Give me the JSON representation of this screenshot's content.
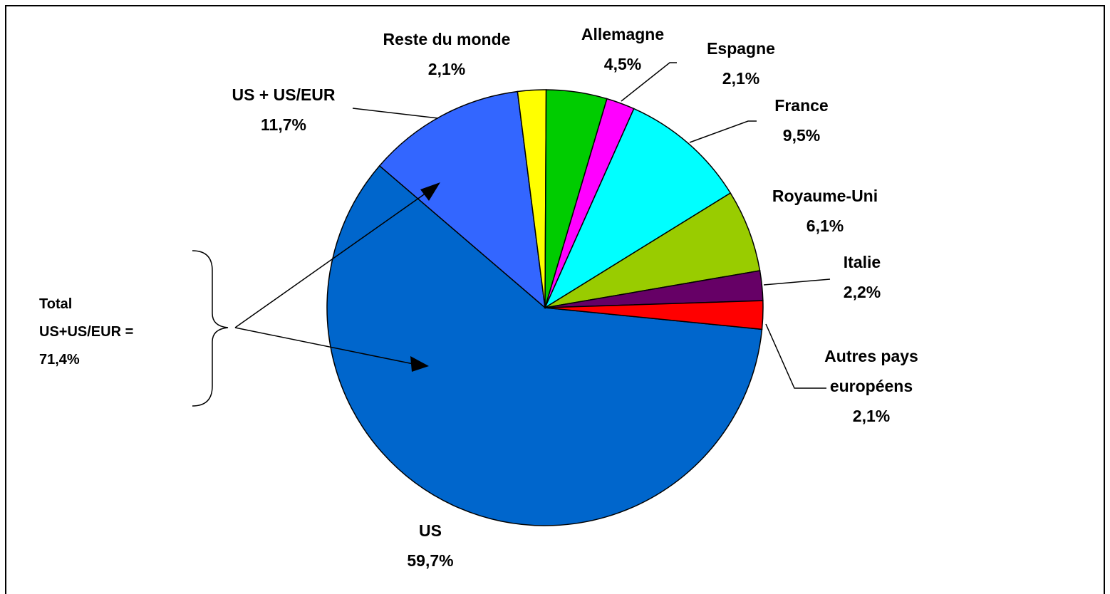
{
  "chart_data": {
    "type": "pie",
    "categories": [
      "US",
      "US + US/EUR",
      "Reste du monde",
      "Allemagne",
      "Espagne",
      "France",
      "Royaume-Uni",
      "Italie",
      "Autres pays\neuropéens"
    ],
    "values": [
      59.7,
      11.7,
      2.1,
      4.5,
      2.1,
      9.5,
      6.1,
      2.2,
      2.1
    ],
    "value_labels": [
      "59,7%",
      "11,7%",
      "2,1%",
      "4,5%",
      "2,1%",
      "9,5%",
      "6,1%",
      "2,2%",
      "2,1%"
    ],
    "colors": [
      "#0066cc",
      "#3366ff",
      "#ffff00",
      "#00cc00",
      "#ff00ff",
      "#00ffff",
      "#99cc00",
      "#660066",
      "#ff0000"
    ],
    "annotation": "Total\nUS+US/EUR =\n71,4%"
  }
}
